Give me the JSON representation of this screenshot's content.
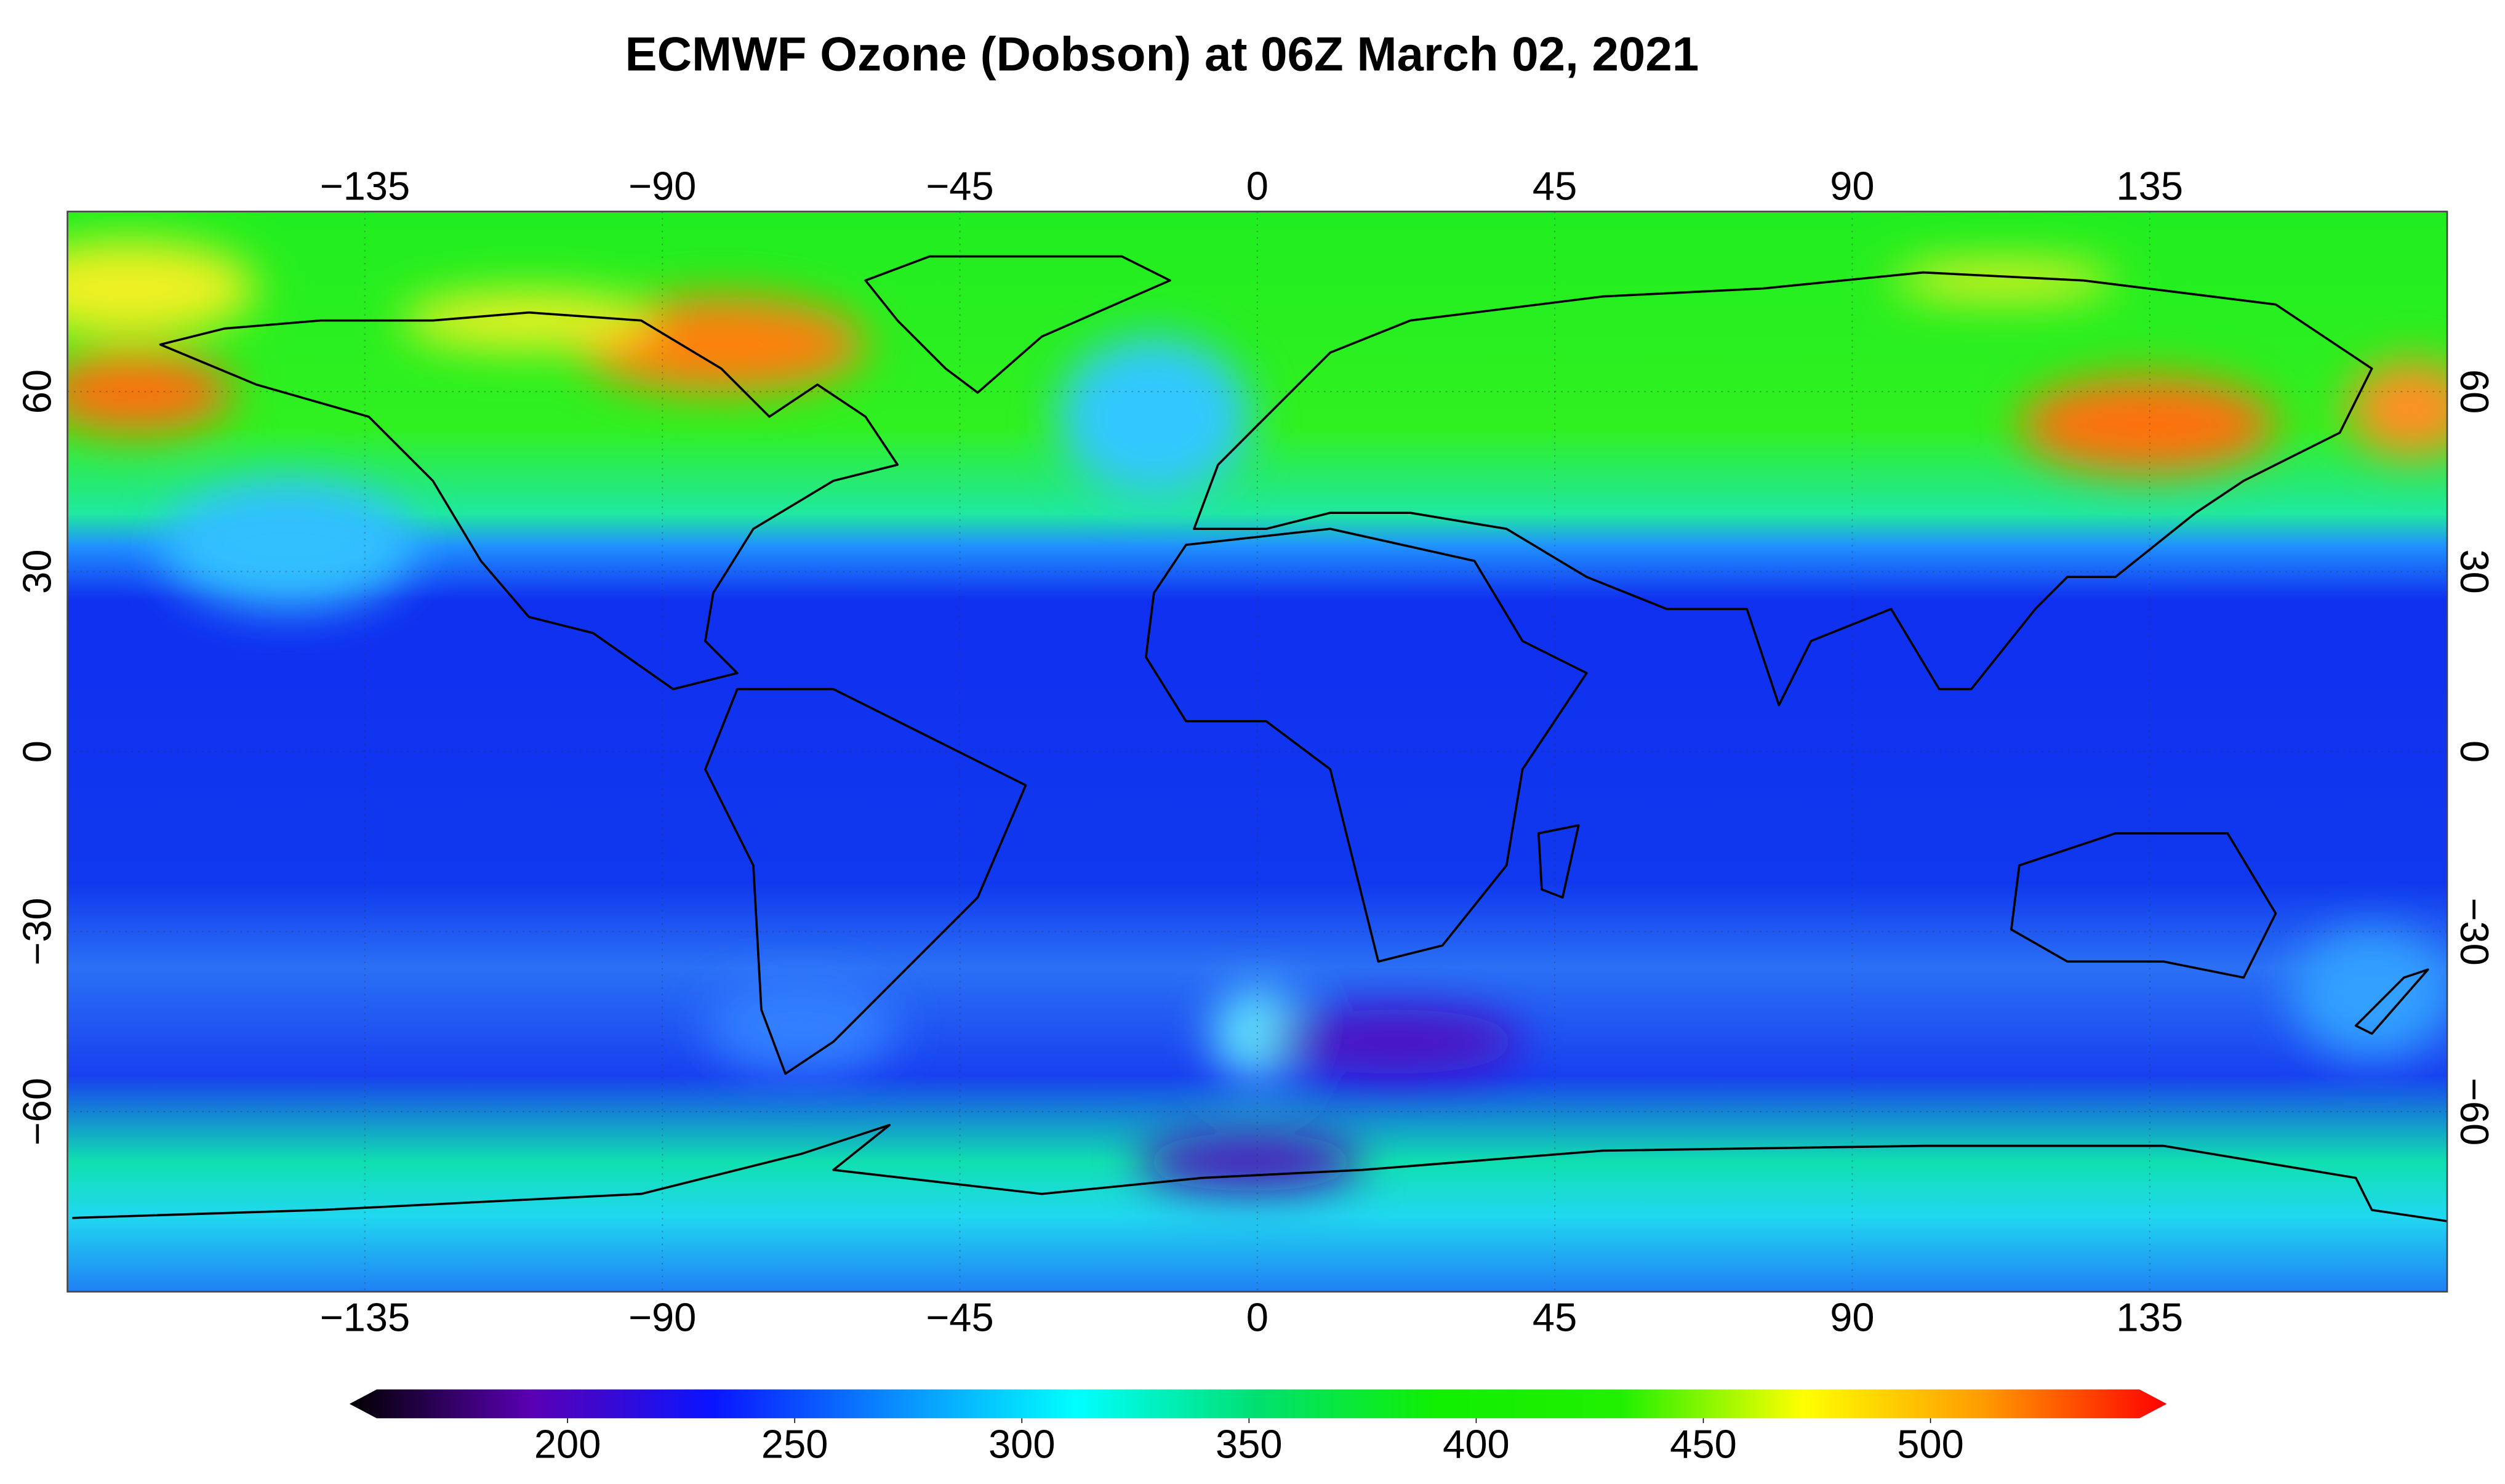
{
  "chart_data": {
    "type": "map",
    "title": "ECMWF Ozone (Dobson) at 06Z March 02, 2021",
    "xlim": [
      -180,
      180
    ],
    "ylim": [
      -90,
      90
    ],
    "xticks": [
      {
        "value": -135,
        "label": "−135"
      },
      {
        "value": -90,
        "label": "−90"
      },
      {
        "value": -45,
        "label": "−45"
      },
      0,
      45,
      90,
      135
    ],
    "yticks": [
      {
        "value": -60,
        "label": "−60"
      },
      {
        "value": -30,
        "label": "−30"
      },
      0,
      30,
      60
    ],
    "grid": true,
    "colorbar": {
      "lim": [
        152,
        552
      ],
      "ticks": [
        200,
        250,
        300,
        350,
        400,
        450,
        500
      ],
      "colors": [
        "#000000",
        "#5a00b4",
        "#0a14ff",
        "#0a8cff",
        "#00ffff",
        "#00e070",
        "#10f000",
        "#20f000",
        "#ffff00",
        "#ff9a00",
        "#ff0000"
      ]
    }
  }
}
